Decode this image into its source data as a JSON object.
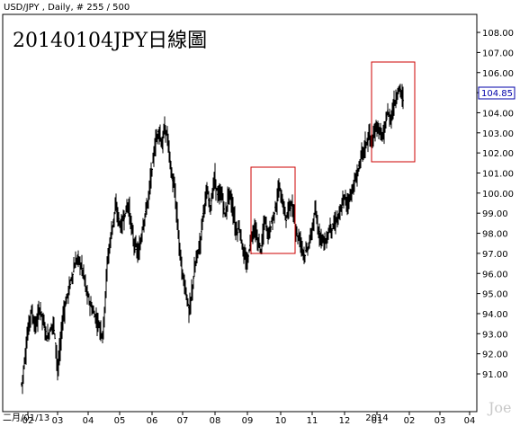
{
  "header": "USD/JPY , Daily, # 255 / 500",
  "watermark": "Joe",
  "chart_data": {
    "type": "bar",
    "title": "20140104JPY日線圖",
    "symbol": "USD/JPY",
    "timeframe": "Daily",
    "current_price": "104.85",
    "ylim": [
      90.3,
      108.6
    ],
    "y_ticks": [
      "91.00",
      "92.00",
      "93.00",
      "94.00",
      "95.00",
      "96.00",
      "97.00",
      "98.00",
      "99.00",
      "100.00",
      "101.00",
      "102.00",
      "103.00",
      "104.00",
      "105.00",
      "106.00",
      "107.00",
      "108.00"
    ],
    "x_ticks": [
      "02",
      "03",
      "04",
      "05",
      "06",
      "07",
      "08",
      "09",
      "10",
      "11",
      "12",
      "01",
      "02",
      "03",
      "04"
    ],
    "x_bottom_labels": [
      "二月/01/13",
      "2014"
    ],
    "months": [
      "2013-02",
      "2013-03",
      "2013-04",
      "2013-05",
      "2013-06",
      "2013-07",
      "2013-08",
      "2013-09",
      "2013-10",
      "2013-11",
      "2013-12",
      "2014-01"
    ],
    "price_path": [
      [
        0,
        90.5
      ],
      [
        5,
        92.5
      ],
      [
        10,
        94.2
      ],
      [
        15,
        93.3
      ],
      [
        20,
        94.3
      ],
      [
        28,
        92.8
      ],
      [
        35,
        93.6
      ],
      [
        40,
        91.2
      ],
      [
        46,
        94.0
      ],
      [
        52,
        95.2
      ],
      [
        58,
        96.3
      ],
      [
        62,
        96.8
      ],
      [
        68,
        96.1
      ],
      [
        72,
        95.0
      ],
      [
        78,
        94.2
      ],
      [
        85,
        93.5
      ],
      [
        90,
        92.9
      ],
      [
        95,
        96.6
      ],
      [
        100,
        98.2
      ],
      [
        104,
        99.3
      ],
      [
        110,
        98.3
      ],
      [
        118,
        99.5
      ],
      [
        124,
        97.6
      ],
      [
        130,
        96.9
      ],
      [
        134,
        98.3
      ],
      [
        140,
        99.6
      ],
      [
        144,
        101.0
      ],
      [
        148,
        102.4
      ],
      [
        152,
        103.2
      ],
      [
        156,
        102.3
      ],
      [
        158,
        103.2
      ],
      [
        162,
        102.8
      ],
      [
        166,
        101.0
      ],
      [
        170,
        100.0
      ],
      [
        174,
        97.9
      ],
      [
        178,
        96.0
      ],
      [
        182,
        95.2
      ],
      [
        186,
        94.0
      ],
      [
        190,
        95.5
      ],
      [
        194,
        96.8
      ],
      [
        198,
        97.5
      ],
      [
        202,
        99.3
      ],
      [
        206,
        100.0
      ],
      [
        210,
        99.3
      ],
      [
        214,
        100.8
      ],
      [
        218,
        99.8
      ],
      [
        222,
        100.0
      ],
      [
        226,
        98.8
      ],
      [
        230,
        100.1
      ],
      [
        234,
        99.3
      ],
      [
        238,
        98.1
      ],
      [
        242,
        98.3
      ],
      [
        246,
        97.0
      ],
      [
        250,
        96.4
      ],
      [
        254,
        97.6
      ],
      [
        258,
        98.3
      ],
      [
        262,
        97.6
      ],
      [
        266,
        97.2
      ],
      [
        270,
        98.7
      ],
      [
        274,
        97.9
      ],
      [
        278,
        98.6
      ],
      [
        282,
        99.3
      ],
      [
        286,
        100.3
      ],
      [
        290,
        99.4
      ],
      [
        294,
        98.7
      ],
      [
        298,
        99.6
      ],
      [
        302,
        98.9
      ],
      [
        306,
        97.9
      ],
      [
        310,
        97.6
      ],
      [
        314,
        96.9
      ],
      [
        318,
        97.3
      ],
      [
        322,
        98.0
      ],
      [
        326,
        99.1
      ],
      [
        330,
        98.0
      ],
      [
        334,
        97.8
      ],
      [
        338,
        97.5
      ],
      [
        342,
        98.3
      ],
      [
        346,
        98.3
      ],
      [
        350,
        98.7
      ],
      [
        354,
        99.0
      ],
      [
        358,
        99.8
      ],
      [
        362,
        99.5
      ],
      [
        366,
        100.0
      ],
      [
        370,
        100.5
      ],
      [
        374,
        101.2
      ],
      [
        378,
        102.0
      ],
      [
        382,
        102.4
      ],
      [
        386,
        102.9
      ],
      [
        390,
        102.5
      ],
      [
        394,
        103.4
      ],
      [
        398,
        103.0
      ],
      [
        402,
        102.8
      ],
      [
        406,
        104.0
      ],
      [
        410,
        103.7
      ],
      [
        413,
        104.3
      ],
      [
        416,
        104.8
      ],
      [
        419,
        105.2
      ],
      [
        422,
        105.0
      ],
      [
        424,
        104.5
      ]
    ]
  }
}
